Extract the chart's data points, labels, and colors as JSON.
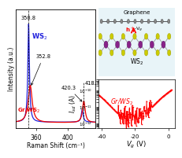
{
  "raman_xlim": [
    335,
    435
  ],
  "raman_xticks": [
    360,
    400
  ],
  "raman_xlabel": "Raman Shift (cm⁻¹)",
  "raman_ylabel": "Intensity (a.u.)",
  "peak1_ws2": 350.8,
  "peak1_grws2": 352.8,
  "peak2_ws2": 418.3,
  "peak2_grws2": 420.3,
  "ws2_color": "#2222dd",
  "grws2_color": "#ee0000",
  "iv_xlim": [
    -42,
    4
  ],
  "iv_xticks": [
    -40,
    -20,
    0
  ],
  "iv_yticks_labels": [
    "10$^{-12}$",
    "10$^{-11}$",
    "10$^{-10}$"
  ],
  "iv_yticks_vals": [
    1e-12,
    1e-11,
    1e-10
  ],
  "graphene_color": "#888888",
  "s_color": "#cccc00",
  "w_color": "#882288",
  "bg_struct_color": "#e8f4f8",
  "struct_line_color": "#aaaaaa"
}
